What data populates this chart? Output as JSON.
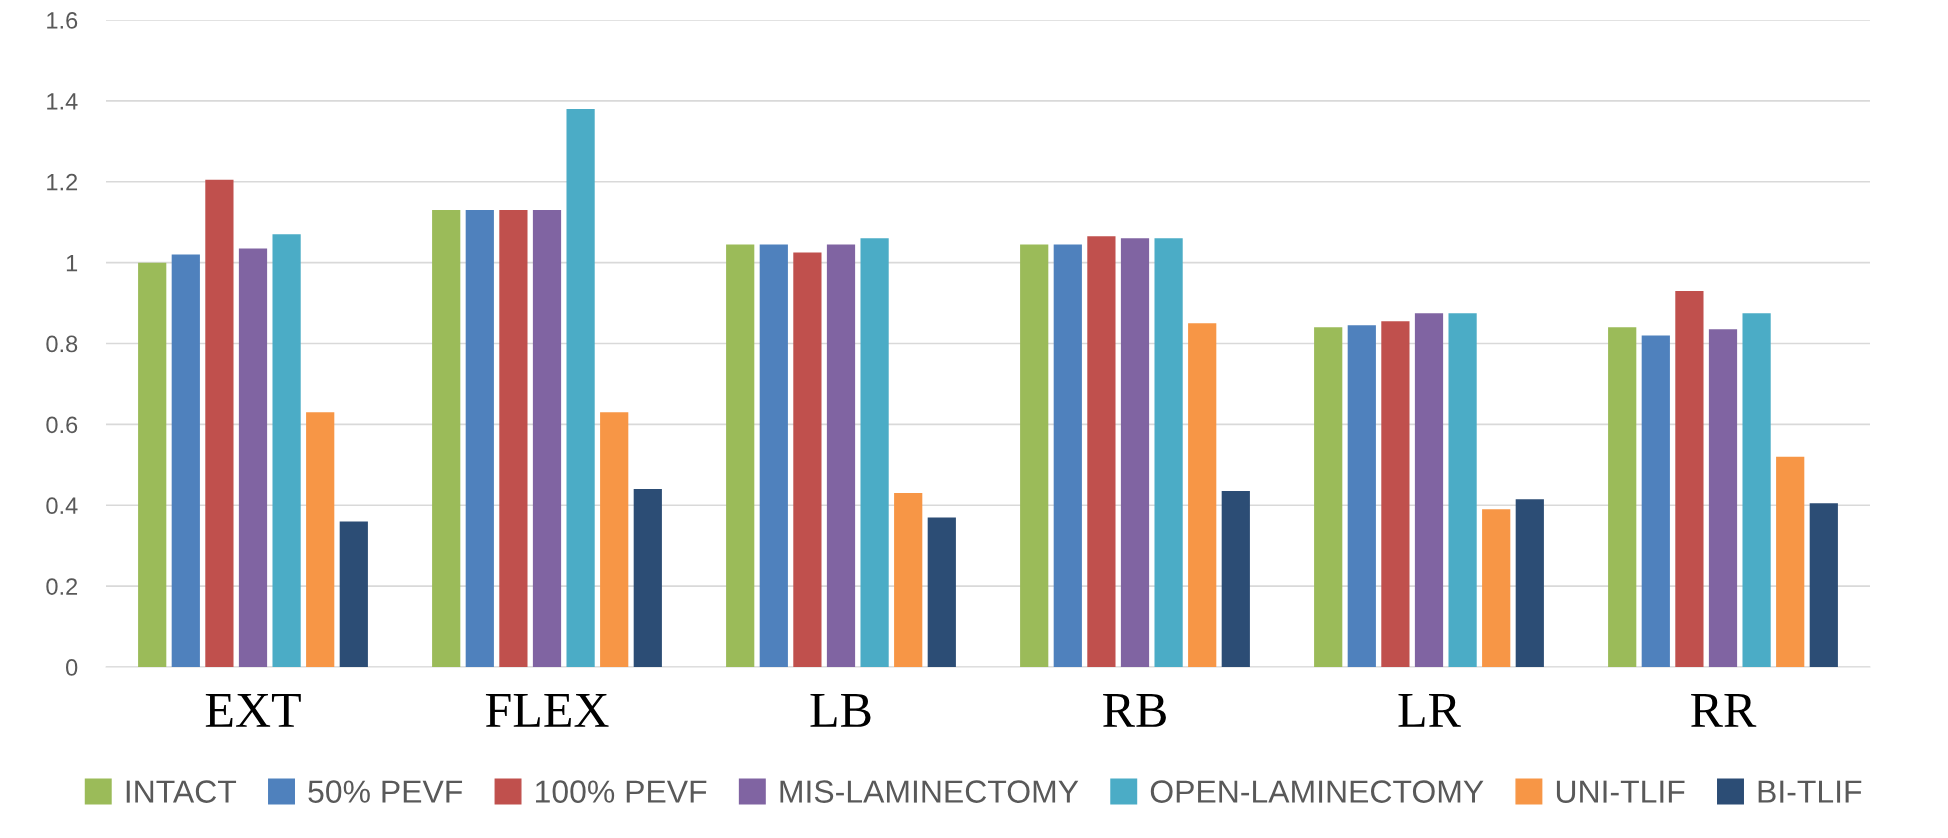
{
  "chart_data": {
    "type": "bar",
    "categories": [
      "EXT",
      "FLEX",
      "LB",
      "RB",
      "LR",
      "RR"
    ],
    "series": [
      {
        "name": "INTACT",
        "color": "#9bbb59",
        "values": [
          1.0,
          1.13,
          1.045,
          1.045,
          0.84,
          0.84
        ]
      },
      {
        "name": "50% PEVF",
        "color": "#4f81bd",
        "values": [
          1.02,
          1.13,
          1.045,
          1.045,
          0.845,
          0.82
        ]
      },
      {
        "name": "100% PEVF",
        "color": "#c0504d",
        "values": [
          1.205,
          1.13,
          1.025,
          1.065,
          0.855,
          0.93
        ]
      },
      {
        "name": "MIS-LAMINECTOMY",
        "color": "#8064a2",
        "values": [
          1.035,
          1.13,
          1.045,
          1.06,
          0.875,
          0.835
        ]
      },
      {
        "name": "OPEN-LAMINECTOMY",
        "color": "#4bacc6",
        "values": [
          1.07,
          1.38,
          1.06,
          1.06,
          0.875,
          0.875
        ]
      },
      {
        "name": "UNI-TLIF",
        "color": "#f79646",
        "values": [
          0.63,
          0.63,
          0.43,
          0.85,
          0.39,
          0.52
        ]
      },
      {
        "name": "BI-TLIF",
        "color": "#2c4d75",
        "values": [
          0.36,
          0.44,
          0.37,
          0.435,
          0.415,
          0.405
        ]
      }
    ],
    "ylim": [
      0,
      1.6
    ],
    "yticks": [
      0,
      0.2,
      0.4,
      0.6,
      0.8,
      1,
      1.2,
      1.4,
      1.6
    ],
    "grid": "y",
    "legend": "bottom"
  }
}
